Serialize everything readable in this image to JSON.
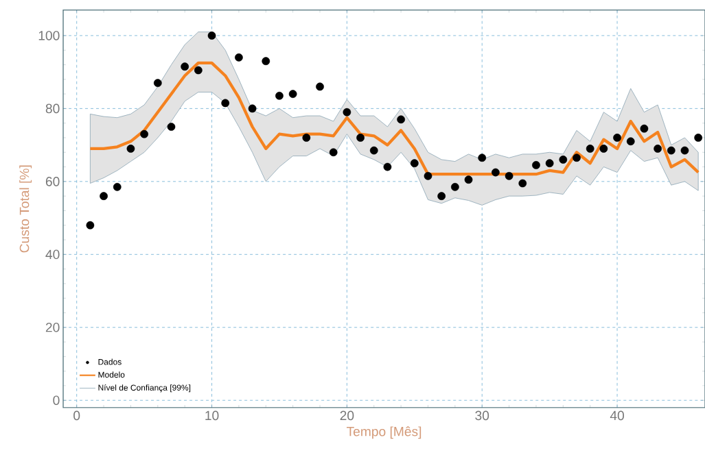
{
  "chart_data": {
    "type": "scatter",
    "xlabel": "Tempo [Mês]",
    "ylabel": "Custo Total [%]",
    "x": [
      1,
      2,
      3,
      4,
      5,
      6,
      7,
      8,
      9,
      10,
      11,
      12,
      13,
      14,
      15,
      16,
      17,
      18,
      19,
      20,
      21,
      22,
      23,
      24,
      25,
      26,
      27,
      28,
      29,
      30,
      31,
      32,
      33,
      34,
      35,
      36,
      37,
      38,
      39,
      40,
      41,
      42,
      43,
      44,
      45,
      46
    ],
    "xlim": [
      -1,
      46.5
    ],
    "ylim": [
      -2,
      107
    ],
    "xticks": [
      0,
      10,
      20,
      30,
      40
    ],
    "yticks": [
      0,
      20,
      40,
      60,
      80,
      100
    ],
    "grid": true,
    "legend": "bottom left",
    "annotations": [
      "Nível de Confiança [99%]"
    ],
    "series": [
      {
        "name": "Dados",
        "marker": "circle",
        "color": "#000000",
        "values": [
          48,
          56,
          58.5,
          69,
          73,
          87,
          75,
          91.5,
          90.5,
          100,
          81.5,
          94,
          80,
          93,
          83.5,
          84,
          72,
          86,
          68,
          79,
          72,
          68.5,
          64,
          77,
          65,
          61.5,
          56,
          58.5,
          60.5,
          66.5,
          62.5,
          61.5,
          59.5,
          64.5,
          65,
          66,
          66.5,
          69,
          69,
          72,
          71,
          74.5,
          69,
          68.5,
          68.5,
          72
        ]
      },
      {
        "name": "Modelo",
        "type": "line",
        "marker": "none",
        "color": "#f5821f",
        "values": [
          69,
          69,
          69.5,
          71,
          74,
          79,
          84,
          89,
          92.5,
          92.5,
          89,
          83,
          75,
          69,
          73,
          72.5,
          73,
          73,
          72.5,
          77.5,
          73,
          72.5,
          70,
          74,
          69,
          62,
          62,
          62,
          62,
          62,
          62,
          62,
          62,
          62,
          63,
          62.5,
          68,
          65,
          71.5,
          69,
          76.5,
          71,
          73.5,
          64,
          66,
          62.5
        ],
        "upper": [
          78.5,
          77.8,
          77.5,
          78.5,
          81,
          86,
          92,
          97.5,
          101,
          101,
          96,
          88,
          79.5,
          78,
          80,
          77.5,
          78,
          78,
          76.5,
          82.5,
          78,
          78,
          75,
          80,
          74.5,
          68,
          66,
          65.5,
          67.5,
          66,
          67.5,
          66.5,
          67.5,
          67.5,
          68,
          67.5,
          74,
          71,
          79,
          76.5,
          85.5,
          79,
          81,
          70,
          72,
          68
        ],
        "lower": [
          59.5,
          61,
          63,
          65.5,
          68,
          72,
          76.5,
          82,
          84.5,
          84.5,
          81.5,
          75,
          68,
          60,
          64,
          67,
          67,
          69,
          67,
          73,
          67.5,
          66,
          64,
          68,
          63.5,
          55,
          54,
          55.5,
          54.8,
          53.5,
          55,
          56,
          56,
          56.2,
          57,
          56.5,
          61.5,
          59,
          64,
          62.5,
          68.5,
          65.5,
          66.5,
          59,
          60,
          57.5
        ]
      }
    ]
  }
}
